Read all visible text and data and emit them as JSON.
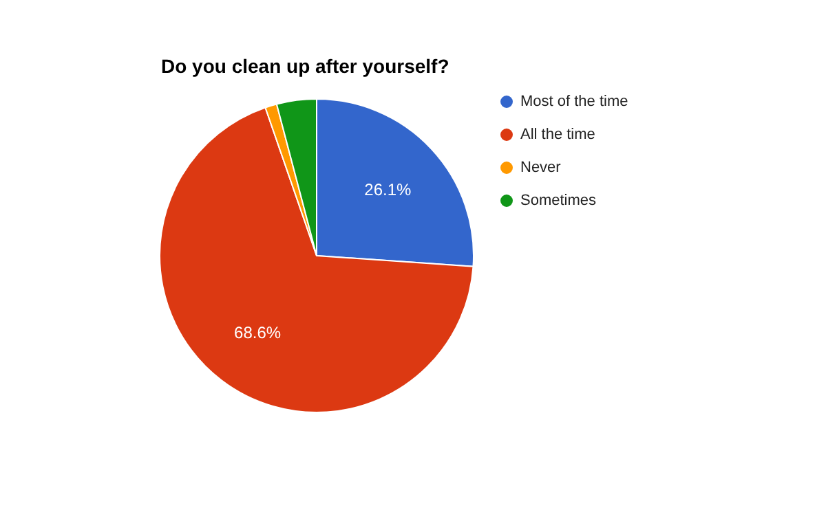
{
  "chart_data": {
    "type": "pie",
    "title": "Do you clean up after yourself?",
    "categories": [
      "Most of the time",
      "All the time",
      "Never",
      "Sometimes"
    ],
    "values": [
      26.1,
      68.6,
      1.2,
      4.1
    ],
    "colors": [
      "#3366cc",
      "#dc3912",
      "#ff9900",
      "#109618"
    ],
    "value_labels": [
      "26.1%",
      "68.6%",
      null,
      null
    ],
    "legend": "right"
  }
}
